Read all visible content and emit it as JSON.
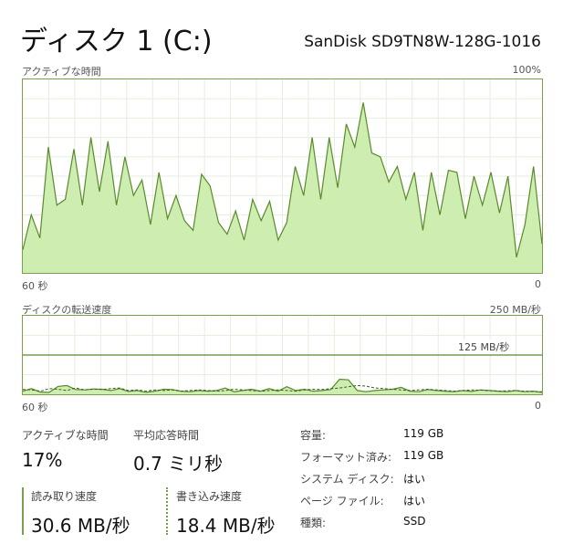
{
  "header": {
    "title": "ディスク 1 (C:)",
    "model": "SanDisk SD9TN8W-128G-1016"
  },
  "active_graph": {
    "label": "アクティブな時間",
    "max_label": "100%",
    "x_left_label": "60 秒",
    "x_right_label": "0",
    "series": [
      12,
      30,
      18,
      65,
      35,
      38,
      64,
      35,
      70,
      42,
      68,
      35,
      60,
      40,
      48,
      25,
      52,
      28,
      40,
      27,
      22,
      51,
      45,
      26,
      20,
      32,
      17,
      38,
      27,
      37,
      17,
      26,
      55,
      40,
      70,
      38,
      70,
      44,
      77,
      65,
      88,
      62,
      60,
      47,
      55,
      38,
      52,
      22,
      52,
      30,
      53,
      52,
      28,
      50,
      35,
      52,
      31,
      50,
      8,
      25,
      55,
      15
    ],
    "color_line": "#5a8a2a",
    "color_fill": "#cdeeb0"
  },
  "transfer_graph": {
    "label": "ディスクの転送速度",
    "max_label": "250 MB/秒",
    "ref_label": "125 MB/秒",
    "x_left_label": "60 秒",
    "x_right_label": "0",
    "read_series": [
      10,
      18,
      7,
      6,
      25,
      28,
      15,
      14,
      17,
      16,
      12,
      18,
      9,
      12,
      6,
      10,
      16,
      15,
      10,
      8,
      12,
      10,
      12,
      20,
      8,
      12,
      16,
      10,
      18,
      10,
      24,
      12,
      16,
      10,
      12,
      15,
      48,
      46,
      12,
      8,
      12,
      14,
      16,
      22,
      10,
      8,
      15,
      12,
      10,
      8,
      12,
      9,
      14,
      12,
      10,
      8,
      12,
      8,
      10,
      6
    ],
    "write_series": [
      15,
      14,
      10,
      18,
      16,
      12,
      20,
      14,
      16,
      15,
      18,
      20,
      12,
      14,
      10,
      14,
      12,
      14,
      10,
      12,
      14,
      12,
      10,
      12,
      16,
      14,
      12,
      10,
      12,
      14,
      12,
      10,
      14,
      16,
      15,
      18,
      20,
      24,
      28,
      26,
      20,
      18,
      16,
      14,
      12,
      14,
      16,
      14,
      12,
      10,
      12,
      14,
      13,
      12,
      10,
      11,
      12,
      10,
      9,
      8
    ],
    "max_value": 250,
    "ref_value": 125
  },
  "stats": {
    "active_time_label": "アクティブな時間",
    "active_time_value": "17%",
    "avg_response_label": "平均応答時間",
    "avg_response_value": "0.7 ミリ秒",
    "read_speed_label": "読み取り速度",
    "read_speed_value": "30.6 MB/秒",
    "write_speed_label": "書き込み速度",
    "write_speed_value": "18.4 MB/秒"
  },
  "properties": [
    {
      "key": "容量:",
      "value": "119 GB"
    },
    {
      "key": "フォーマット済み:",
      "value": "119 GB"
    },
    {
      "key": "システム ディスク:",
      "value": "はい"
    },
    {
      "key": "ページ ファイル:",
      "value": "はい"
    },
    {
      "key": "種類:",
      "value": "SSD"
    }
  ]
}
